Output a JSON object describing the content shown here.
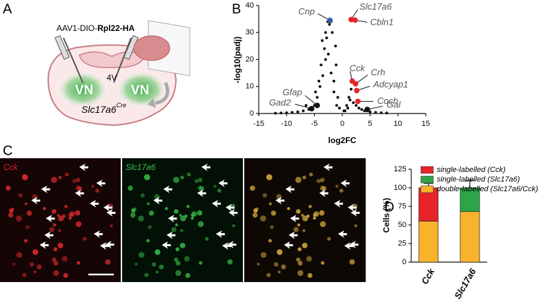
{
  "panel_labels": [
    "A",
    "B",
    "C",
    "D"
  ],
  "diagram": {
    "construct_prefix": "AAV1-DIO-",
    "construct_bold": "Rpl22-HA",
    "ventricle": "4V",
    "left_nucleus": "VN",
    "right_nucleus": "VN",
    "genotype": "Slc17a6",
    "genotype_sup": "Cre"
  },
  "images": {
    "labels": [
      "Cck",
      "Slc17a6"
    ]
  },
  "chart_data": [
    {
      "type": "scatter",
      "xlabel": "log2FC",
      "ylabel": "-log10(padj)",
      "xlim": [
        -15,
        15
      ],
      "xticks": [
        -15,
        -10,
        -5,
        0,
        5,
        10,
        15
      ],
      "ylim": [
        0,
        40
      ],
      "yticks": [
        0,
        10,
        20,
        30,
        40
      ],
      "color": "#111111",
      "x": [
        -1,
        -1.5,
        -2,
        -2.5,
        -3,
        -3.5,
        -4,
        -4.5,
        -5,
        -5.5,
        -6,
        -7,
        -8,
        -9,
        -10,
        -11,
        -12,
        -1.2,
        -1.8,
        -2.3,
        -2.8,
        -3.2,
        -3.8,
        -4.2,
        -2,
        -2.6,
        -3,
        -1.5,
        -0.5,
        0.3,
        0.8,
        1.2,
        1.6,
        2,
        2.5,
        3,
        3.5,
        4,
        5,
        6,
        7,
        8,
        0.5,
        1,
        1.4,
        -0.8,
        -1.1,
        -3.6,
        -4.8,
        -6.5
      ],
      "y": [
        3,
        8,
        15,
        22,
        20,
        14,
        10,
        6,
        3,
        2,
        1.5,
        1,
        0.6,
        0.4,
        0.3,
        0.2,
        0.1,
        25,
        30,
        33,
        28,
        24,
        18,
        12,
        34,
        34,
        30,
        12,
        2,
        1,
        3,
        6,
        9,
        4,
        3,
        2,
        1.5,
        1,
        0.6,
        0.4,
        0.3,
        0.2,
        1,
        2,
        5,
        6,
        18,
        27,
        8,
        3
      ],
      "genes": [
        {
          "label": "Cnp",
          "x": -2.2,
          "y": 34.5,
          "color": "#3b5ba5"
        },
        {
          "label": "Slc17a6",
          "x": 1.6,
          "y": 34.8,
          "color": "#e3262b"
        },
        {
          "label": "Cbln1",
          "x": 2.3,
          "y": 34.6,
          "color": "#e3262b"
        },
        {
          "label": "Cck",
          "x": 1.8,
          "y": 12,
          "color": "#e3262b"
        },
        {
          "label": "Crh",
          "x": 2.4,
          "y": 11,
          "color": "#e3262b"
        },
        {
          "label": "Adcyap1",
          "x": 2.6,
          "y": 8.5,
          "color": "#e3262b"
        },
        {
          "label": "Coch",
          "x": 2.8,
          "y": 4.5,
          "color": "#e3262b"
        },
        {
          "label": "Gal",
          "x": 4.5,
          "y": 1.5,
          "color": "#111111"
        },
        {
          "label": "Gfap",
          "x": -4.5,
          "y": 3,
          "color": "#111111"
        },
        {
          "label": "Gad2",
          "x": -5.5,
          "y": 1.8,
          "color": "#111111"
        }
      ]
    },
    {
      "type": "stacked_bar",
      "ylabel": "Cells (%)",
      "categories": [
        "Cck",
        "Slc17a6"
      ],
      "ylim": [
        0,
        125
      ],
      "yticks": [
        0,
        25,
        50,
        75,
        100,
        125
      ],
      "series": [
        {
          "name": "single-labelled (Cck)",
          "color": "#e8232a",
          "values": [
            45,
            null
          ],
          "errors": [
            6,
            null
          ]
        },
        {
          "name": "single-labelled (Slc17a6)",
          "color": "#2ea44a",
          "values": [
            null,
            32
          ],
          "errors": [
            null,
            10
          ]
        },
        {
          "name": "double-labelled (Slc17a6/Cck)",
          "color": "#f7b32b",
          "values": [
            55,
            68
          ],
          "errors": [
            5,
            9
          ]
        }
      ]
    }
  ]
}
